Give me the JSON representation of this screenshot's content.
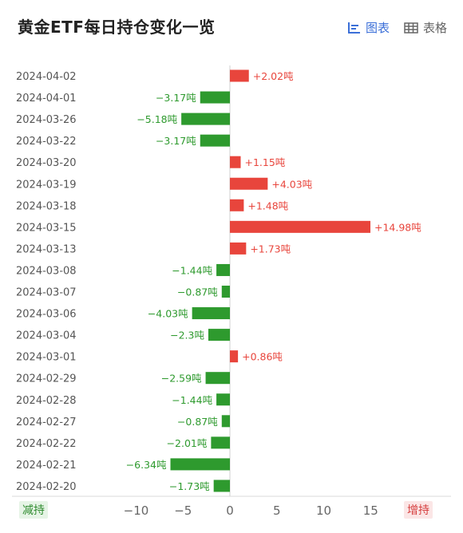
{
  "header": {
    "title": "黄金ETF每日持仓变化一览",
    "tab_chart": "图表",
    "tab_table": "表格"
  },
  "legend": {
    "decrease": "减持",
    "increase": "增持"
  },
  "colors": {
    "increase": "#e8453c",
    "decrease": "#2e9a2e",
    "active_tab": "#3b6fd8"
  },
  "chart_data": {
    "type": "bar",
    "orientation": "horizontal",
    "unit": "吨",
    "xlim": [
      -15,
      15
    ],
    "xticks": [
      -10,
      -5,
      0,
      5,
      10,
      15
    ],
    "xtick_labels": [
      "−10",
      "−5",
      "0",
      "5",
      "10",
      "15"
    ],
    "categories": [
      "2024-04-02",
      "2024-04-01",
      "2024-03-26",
      "2024-03-22",
      "2024-03-20",
      "2024-03-19",
      "2024-03-18",
      "2024-03-15",
      "2024-03-13",
      "2024-03-08",
      "2024-03-07",
      "2024-03-06",
      "2024-03-04",
      "2024-03-01",
      "2024-02-29",
      "2024-02-28",
      "2024-02-27",
      "2024-02-22",
      "2024-02-21",
      "2024-02-20"
    ],
    "values": [
      2.02,
      -3.17,
      -5.18,
      -3.17,
      1.15,
      4.03,
      1.48,
      14.98,
      1.73,
      -1.44,
      -0.87,
      -4.03,
      -2.3,
      0.86,
      -2.59,
      -1.44,
      -0.87,
      -2.01,
      -6.34,
      -1.73
    ],
    "labels": [
      "+2.02吨",
      "−3.17吨",
      "−5.18吨",
      "−3.17吨",
      "+1.15吨",
      "+4.03吨",
      "+1.48吨",
      "+14.98吨",
      "+1.73吨",
      "−1.44吨",
      "−0.87吨",
      "−4.03吨",
      "−2.3吨",
      "+0.86吨",
      "−2.59吨",
      "−1.44吨",
      "−0.87吨",
      "−2.01吨",
      "−6.34吨",
      "−1.73吨"
    ]
  }
}
